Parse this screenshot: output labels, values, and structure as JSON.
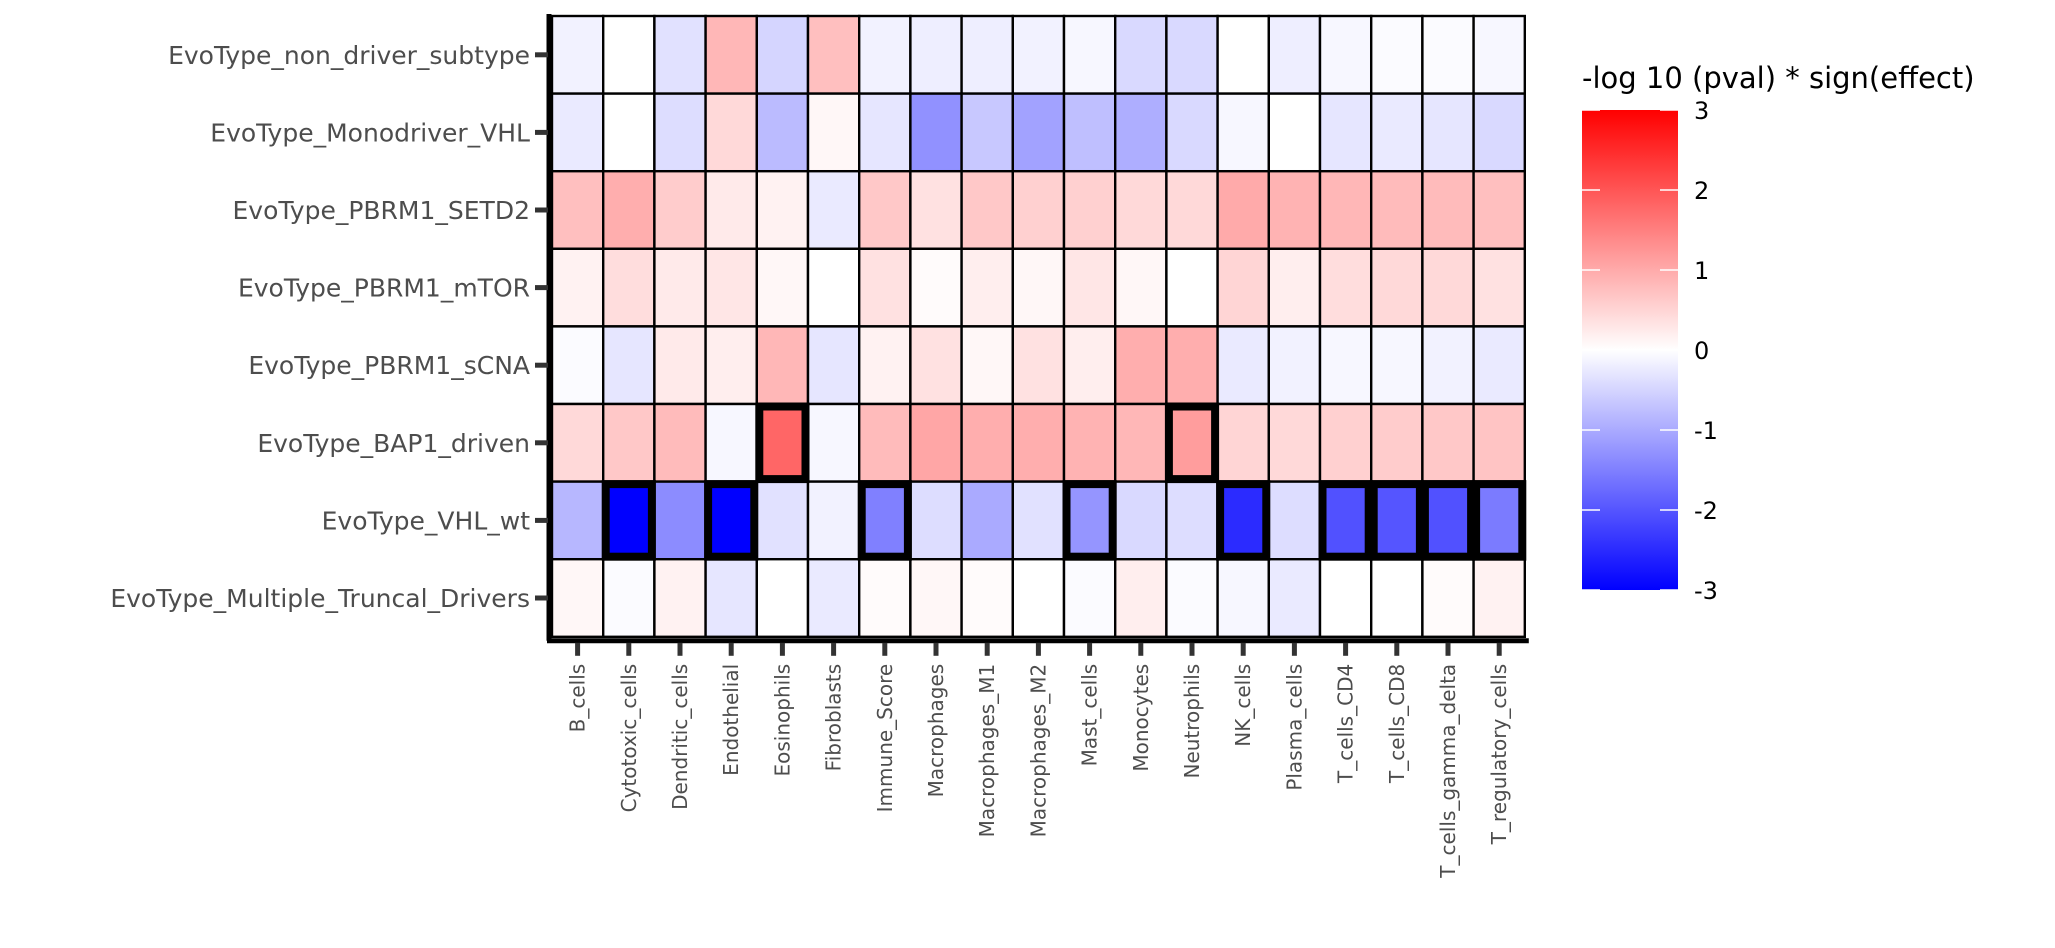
{
  "chart_data": {
    "type": "heatmap",
    "rows": [
      "EvoType_non_driver_subtype",
      "EvoType_Monodriver_VHL",
      "EvoType_PBRM1_SETD2",
      "EvoType_PBRM1_mTOR",
      "EvoType_PBRM1_sCNA",
      "EvoType_BAP1_driven",
      "EvoType_VHL_wt",
      "EvoType_Multiple_Truncal_Drivers"
    ],
    "columns": [
      "B_cells",
      "Cytotoxic_cells",
      "Dendritic_cells",
      "Endothelial",
      "Eosinophils",
      "Fibroblasts",
      "Immune_Score",
      "Macrophages",
      "Macrophages_M1",
      "Macrophages_M2",
      "Mast_cells",
      "Monocytes",
      "Neutrophils",
      "NK_cells",
      "Plasma_cells",
      "T_cells_CD4",
      "T_cells_CD8",
      "T_cells_gamma_delta",
      "T_regulatory_cells"
    ],
    "values": [
      [
        -0.15,
        0.0,
        -0.35,
        0.85,
        -0.5,
        0.75,
        -0.15,
        -0.2,
        -0.2,
        -0.15,
        -0.1,
        -0.45,
        -0.45,
        0.0,
        -0.2,
        -0.1,
        -0.05,
        -0.05,
        -0.1
      ],
      [
        -0.25,
        0.0,
        -0.4,
        0.45,
        -0.8,
        0.1,
        -0.3,
        -1.3,
        -0.65,
        -1.1,
        -0.75,
        -0.95,
        -0.45,
        -0.1,
        0.0,
        -0.3,
        -0.25,
        -0.3,
        -0.45
      ],
      [
        0.75,
        0.95,
        0.6,
        0.25,
        0.15,
        -0.25,
        0.65,
        0.35,
        0.65,
        0.55,
        0.55,
        0.45,
        0.45,
        1.0,
        0.9,
        0.85,
        0.8,
        0.8,
        0.75
      ],
      [
        0.15,
        0.4,
        0.25,
        0.3,
        0.1,
        0.0,
        0.35,
        0.05,
        0.2,
        0.1,
        0.3,
        0.1,
        0.0,
        0.5,
        0.2,
        0.4,
        0.45,
        0.45,
        0.35
      ],
      [
        -0.05,
        -0.3,
        0.25,
        0.2,
        0.85,
        -0.3,
        0.15,
        0.35,
        0.1,
        0.35,
        0.2,
        0.95,
        0.95,
        -0.25,
        -0.15,
        -0.1,
        -0.1,
        -0.15,
        -0.25
      ],
      [
        0.45,
        0.65,
        0.8,
        -0.1,
        1.8,
        -0.1,
        0.8,
        1.05,
        0.95,
        0.95,
        0.9,
        0.85,
        1.15,
        0.5,
        0.45,
        0.55,
        0.6,
        0.65,
        0.7
      ],
      [
        -0.85,
        -3.0,
        -1.35,
        -3.0,
        -0.35,
        -0.15,
        -1.5,
        -0.4,
        -1.0,
        -0.35,
        -1.25,
        -0.45,
        -0.4,
        -2.5,
        -0.4,
        -2.05,
        -2.0,
        -2.05,
        -1.55
      ],
      [
        0.1,
        -0.05,
        0.15,
        -0.3,
        0.0,
        -0.25,
        0.05,
        0.1,
        0.05,
        0.0,
        -0.05,
        0.2,
        -0.05,
        -0.1,
        -0.25,
        0.0,
        0.0,
        0.05,
        0.15
      ]
    ],
    "highlighted": [
      [
        5,
        4
      ],
      [
        5,
        12
      ],
      [
        6,
        1
      ],
      [
        6,
        3
      ],
      [
        6,
        6
      ],
      [
        6,
        10
      ],
      [
        6,
        13
      ],
      [
        6,
        15
      ],
      [
        6,
        16
      ],
      [
        6,
        17
      ],
      [
        6,
        18
      ]
    ],
    "color_scale": {
      "title": "-log 10 (pval) * sign(effect)",
      "range": [
        -3,
        3
      ],
      "ticks": [
        "3",
        "2",
        "1",
        "0",
        "-1",
        "-2",
        "-3"
      ],
      "low_color": "#0000ff",
      "mid_color": "#ffffff",
      "high_color": "#ff0000"
    },
    "legend_position": "right"
  }
}
